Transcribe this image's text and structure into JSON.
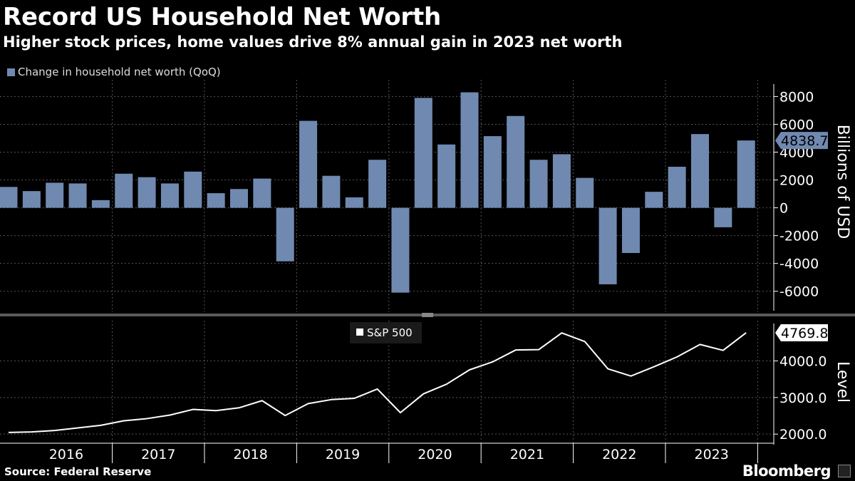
{
  "header": {
    "title": "Record US Household Net Worth",
    "subtitle": "Higher stock prices, home values drive 8% annual gain in 2023 net worth"
  },
  "footer": {
    "source": "Source: Federal Reserve",
    "brand": "Bloomberg"
  },
  "colors": {
    "bar": "#7089b0",
    "line": "#ffffff",
    "background": "#000000",
    "grid": "#555555"
  },
  "chart_data": [
    {
      "type": "bar",
      "legend": "Change in household net worth (QoQ)",
      "ylabel": "Billions of USD",
      "ylim": [
        -7500,
        9200
      ],
      "yticks": [
        "8000",
        "6000",
        "4000",
        "2000",
        "0",
        "-2000",
        "-4000",
        "-6000"
      ],
      "ytick_values": [
        8000,
        6000,
        4000,
        2000,
        0,
        -2000,
        -4000,
        -6000
      ],
      "last_value_label": "4838.7",
      "grid": true,
      "x": [
        "2015Q4",
        "2016Q1",
        "2016Q2",
        "2016Q3",
        "2016Q4",
        "2017Q1",
        "2017Q2",
        "2017Q3",
        "2017Q4",
        "2018Q1",
        "2018Q2",
        "2018Q3",
        "2018Q4",
        "2019Q1",
        "2019Q2",
        "2019Q3",
        "2019Q4",
        "2020Q1",
        "2020Q2",
        "2020Q3",
        "2020Q4",
        "2021Q1",
        "2021Q2",
        "2021Q3",
        "2021Q4",
        "2022Q1",
        "2022Q2",
        "2022Q3",
        "2022Q4",
        "2023Q1",
        "2023Q2",
        "2023Q3",
        "2023Q4"
      ],
      "values": [
        1500,
        1200,
        1800,
        1750,
        550,
        2450,
        2200,
        1750,
        2600,
        1050,
        1350,
        2100,
        -3850,
        6250,
        2300,
        750,
        3450,
        -6100,
        7900,
        4550,
        8300,
        5150,
        6600,
        3450,
        3850,
        2150,
        -5500,
        -3250,
        1150,
        2950,
        5300,
        -1400,
        4838.7
      ]
    },
    {
      "type": "line",
      "legend": "S&P 500",
      "ylabel": "Level",
      "ylim": [
        1750,
        5100
      ],
      "yticks": [
        "4000.0",
        "3000.0",
        "2000.0"
      ],
      "ytick_values": [
        4000,
        3000,
        2000
      ],
      "last_value_label": "4769.8",
      "grid": true,
      "xticks": [
        "2016",
        "2017",
        "2018",
        "2019",
        "2020",
        "2021",
        "2022",
        "2023"
      ],
      "x": [
        "2015Q4",
        "2016Q1",
        "2016Q2",
        "2016Q3",
        "2016Q4",
        "2017Q1",
        "2017Q2",
        "2017Q3",
        "2017Q4",
        "2018Q1",
        "2018Q2",
        "2018Q3",
        "2018Q4",
        "2019Q1",
        "2019Q2",
        "2019Q3",
        "2019Q4",
        "2020Q1",
        "2020Q2",
        "2020Q3",
        "2020Q4",
        "2021Q1",
        "2021Q2",
        "2021Q3",
        "2021Q4",
        "2022Q1",
        "2022Q2",
        "2022Q3",
        "2022Q4",
        "2023Q1",
        "2023Q2",
        "2023Q3",
        "2023Q4"
      ],
      "values": [
        2044,
        2060,
        2099,
        2168,
        2239,
        2363,
        2423,
        2519,
        2674,
        2641,
        2718,
        2914,
        2507,
        2834,
        2942,
        2977,
        3231,
        2585,
        3100,
        3363,
        3756,
        3973,
        4298,
        4308,
        4766,
        4530,
        3785,
        3586,
        3840,
        4109,
        4450,
        4288,
        4769.8
      ]
    }
  ]
}
